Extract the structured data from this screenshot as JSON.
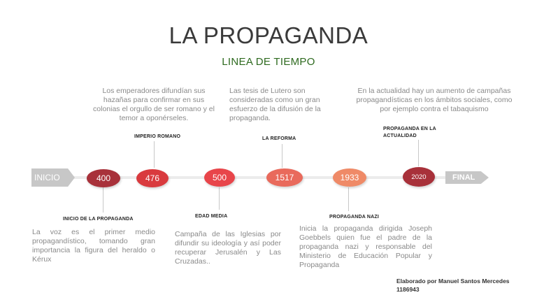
{
  "title": "LA PROPAGANDA",
  "subtitle": "LINEA DE TIEMPO",
  "start_label": "INICIO",
  "end_label": "FINAL",
  "nodes": [
    {
      "year": "400",
      "color": "#a8313a"
    },
    {
      "year": "476",
      "color": "#d93a3e"
    },
    {
      "year": "500",
      "color": "#e8454a"
    },
    {
      "year": "1517",
      "color": "#e96a5c"
    },
    {
      "year": "1933",
      "color": "#ef8a67"
    },
    {
      "year": "2020",
      "color": "#a8313a"
    }
  ],
  "events": {
    "inicio": {
      "label": "INICIO DE LA PROPAGANDA",
      "text": "La voz es el primer medio propagandístico, tomando gran importancia la figura del heraldo o Kérux"
    },
    "imperio": {
      "label": "IMPERIO ROMANO",
      "text": "Los emperadores difundían sus hazañas para confirmar en sus colonias el orgullo de ser romano y el temor a oponérseles."
    },
    "edad_media": {
      "label": "EDAD MEDIA",
      "text": "Campaña de las Iglesias por difundir su ideología y así poder recuperar Jerusalén y Las Cruzadas.."
    },
    "reforma": {
      "label": "LA REFORMA",
      "text": "Las tesis de Lutero son consideradas como un gran esfuerzo de la difusión de la propaganda."
    },
    "nazi": {
      "label": "PROPAGANDA NAZI",
      "text": "Inicia la propaganda dirigida Joseph Goebbels quien fue el padre de la propaganda nazi y responsable del Ministerio de Educación Popular y Propaganda"
    },
    "actualidad": {
      "label": "PROPAGANDA EN LA ACTUALIDAD",
      "text": "En la actualidad hay un aumento de campañas propagandísticas en los ámbitos sociales, como por ejemplo contra el tabaquismo"
    }
  },
  "credit": {
    "line1": "Elaborado por Manuel Santos Mercedes",
    "line2": "1186943"
  }
}
